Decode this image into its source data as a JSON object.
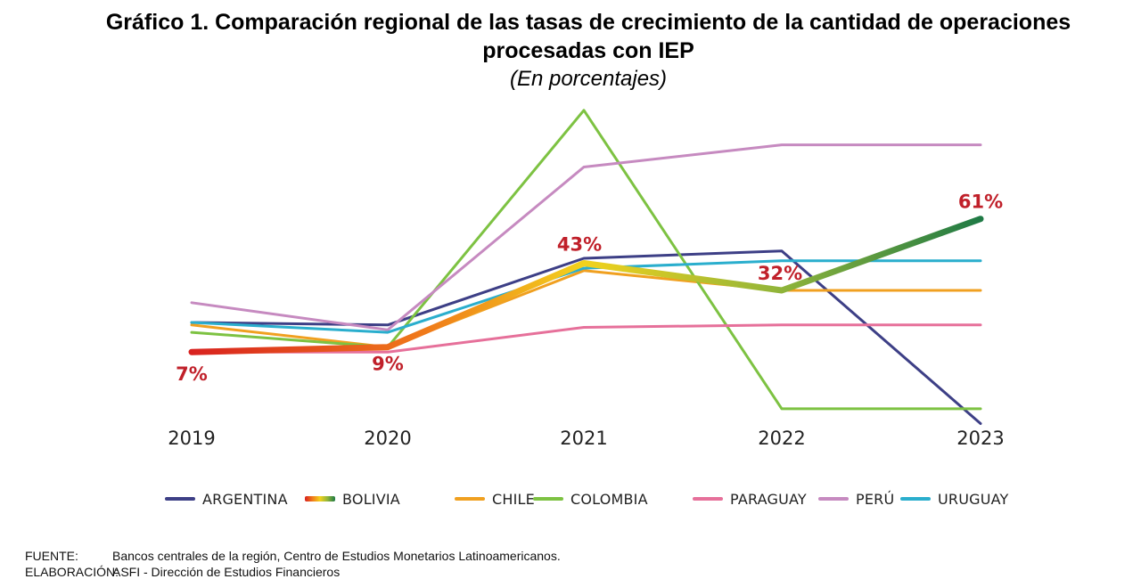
{
  "chart_data": {
    "type": "line",
    "title": "Gráfico 1. Comparación regional de las tasas de crecimiento de la cantidad de operaciones",
    "title_line2": "procesadas con IEP",
    "subtitle": "(En porcentajes)",
    "xlabel": "",
    "ylabel": "",
    "x": [
      "2019",
      "2020",
      "2021",
      "2022",
      "2023"
    ],
    "ylim": [
      -20,
      110
    ],
    "grid": false,
    "legend_position": "bottom",
    "series": [
      {
        "name": "ARGENTINA",
        "color": "#3d3f86",
        "values": [
          19,
          18,
          45,
          48,
          -22
        ]
      },
      {
        "name": "BOLIVIA",
        "color": "#e8b21a",
        "values": [
          7,
          9,
          43,
          32,
          61
        ]
      },
      {
        "name": "CHILE",
        "color": "#f0a020",
        "values": [
          18,
          9,
          40,
          32,
          32
        ]
      },
      {
        "name": "COLOMBIA",
        "color": "#7dc242",
        "values": [
          15,
          9,
          105,
          -16,
          -16
        ]
      },
      {
        "name": "PARAGUAY",
        "color": "#e6709a",
        "values": [
          7,
          7,
          17,
          18,
          18
        ]
      },
      {
        "name": "PERÚ",
        "color": "#c68ac0",
        "values": [
          27,
          16,
          82,
          91,
          91
        ]
      },
      {
        "name": "URUGUAY",
        "color": "#2aaecd",
        "values": [
          19,
          15,
          41,
          44,
          44
        ]
      }
    ],
    "annotations": [
      {
        "text": "7%",
        "x": "2019",
        "y": 7
      },
      {
        "text": "9%",
        "x": "2020",
        "y": 9
      },
      {
        "text": "43%",
        "x": "2021",
        "y": 43
      },
      {
        "text": "32%",
        "x": "2022",
        "y": 32
      },
      {
        "text": "61%",
        "x": "2023",
        "y": 61
      }
    ],
    "annotation_color": "#c0202a"
  },
  "footer": {
    "source_label": "FUENTE:",
    "source_text": "Bancos centrales de la región, Centro de Estudios Monetarios Latinoamericanos.",
    "elab_label": "ELABORACIÓN:",
    "elab_text": "ASFI - Dirección de Estudios Financieros"
  }
}
